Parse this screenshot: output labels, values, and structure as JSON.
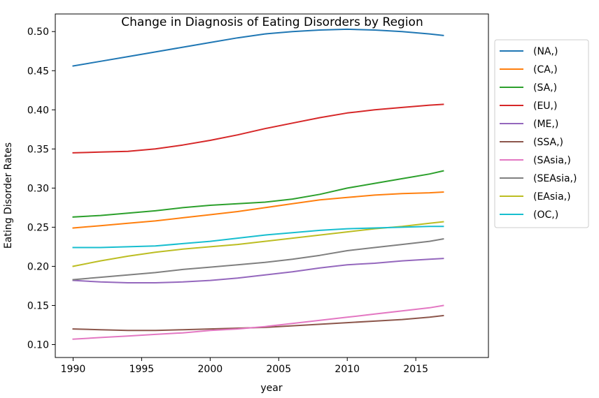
{
  "chart_data": {
    "type": "line",
    "title": "Change in Diagnosis of Eating Disorders by Region",
    "xlabel": "year",
    "ylabel": "Eating Disorder Rates",
    "xlim": [
      1988.7,
      2020.3
    ],
    "ylim": [
      0.0835,
      0.5225
    ],
    "xticks": [
      1990,
      1995,
      2000,
      2005,
      2010,
      2015
    ],
    "xtick_labels": [
      "1990",
      "1995",
      "2000",
      "2005",
      "2010",
      "2015"
    ],
    "yticks": [
      0.1,
      0.15,
      0.2,
      0.25,
      0.3,
      0.35,
      0.4,
      0.45,
      0.5
    ],
    "ytick_labels": [
      "0.10",
      "0.15",
      "0.20",
      "0.25",
      "0.30",
      "0.35",
      "0.40",
      "0.45",
      "0.50"
    ],
    "grid": false,
    "legend_position": "outside-right",
    "x": [
      1990,
      1992,
      1994,
      1996,
      1998,
      2000,
      2002,
      2004,
      2006,
      2008,
      2010,
      2012,
      2014,
      2016,
      2017
    ],
    "series": [
      {
        "name": "(NA,)",
        "color": "#1f77b4",
        "values": [
          0.456,
          0.462,
          0.468,
          0.474,
          0.48,
          0.486,
          0.492,
          0.497,
          0.5,
          0.502,
          0.503,
          0.502,
          0.5,
          0.497,
          0.495
        ]
      },
      {
        "name": "(CA,)",
        "color": "#ff7f0e",
        "values": [
          0.249,
          0.252,
          0.255,
          0.258,
          0.262,
          0.266,
          0.27,
          0.275,
          0.28,
          0.285,
          0.288,
          0.291,
          0.293,
          0.294,
          0.295
        ]
      },
      {
        "name": "(SA,)",
        "color": "#2ca02c",
        "values": [
          0.263,
          0.265,
          0.268,
          0.271,
          0.275,
          0.278,
          0.28,
          0.282,
          0.286,
          0.292,
          0.3,
          0.306,
          0.312,
          0.318,
          0.322
        ]
      },
      {
        "name": "(EU,)",
        "color": "#d62728",
        "values": [
          0.345,
          0.346,
          0.347,
          0.35,
          0.355,
          0.361,
          0.368,
          0.376,
          0.383,
          0.39,
          0.396,
          0.4,
          0.403,
          0.406,
          0.407
        ]
      },
      {
        "name": "(ME,)",
        "color": "#9467bd",
        "values": [
          0.182,
          0.18,
          0.179,
          0.179,
          0.18,
          0.182,
          0.185,
          0.189,
          0.193,
          0.198,
          0.202,
          0.204,
          0.207,
          0.209,
          0.21
        ]
      },
      {
        "name": "(SSA,)",
        "color": "#8c564b",
        "values": [
          0.12,
          0.119,
          0.118,
          0.118,
          0.119,
          0.12,
          0.121,
          0.122,
          0.124,
          0.126,
          0.128,
          0.13,
          0.132,
          0.135,
          0.137
        ]
      },
      {
        "name": "(SAsia,)",
        "color": "#e377c2",
        "values": [
          0.107,
          0.109,
          0.111,
          0.113,
          0.115,
          0.118,
          0.12,
          0.123,
          0.127,
          0.131,
          0.135,
          0.139,
          0.143,
          0.147,
          0.15
        ]
      },
      {
        "name": "(SEAsia,)",
        "color": "#7f7f7f",
        "values": [
          0.183,
          0.186,
          0.189,
          0.192,
          0.196,
          0.199,
          0.202,
          0.205,
          0.209,
          0.214,
          0.22,
          0.224,
          0.228,
          0.232,
          0.235
        ]
      },
      {
        "name": "(EAsia,)",
        "color": "#bcbd22",
        "values": [
          0.2,
          0.207,
          0.213,
          0.218,
          0.222,
          0.225,
          0.228,
          0.232,
          0.236,
          0.24,
          0.244,
          0.248,
          0.251,
          0.255,
          0.257
        ]
      },
      {
        "name": "(OC,)",
        "color": "#17becf",
        "values": [
          0.224,
          0.224,
          0.225,
          0.226,
          0.229,
          0.232,
          0.236,
          0.24,
          0.243,
          0.246,
          0.248,
          0.249,
          0.25,
          0.251,
          0.251
        ]
      }
    ]
  }
}
